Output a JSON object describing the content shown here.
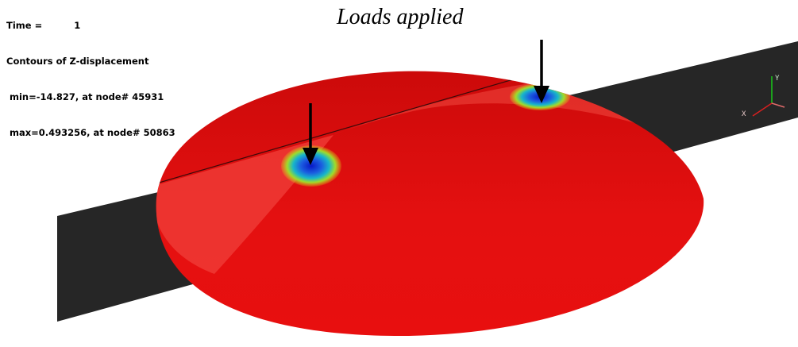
{
  "header": {
    "time_line": "Time =          1",
    "title": "Contours of Z-displacement",
    "min_line": " min=-14.827, at node# 45931",
    "max_line": " max=0.493256, at node# 50863"
  },
  "caption": "Loads applied",
  "triad": {
    "y_label": "Y",
    "x_label": "X"
  },
  "colors": {
    "dome": "#e00b0b",
    "dome_light": "#ee3a35",
    "strip": "#262626",
    "contour_low": "#0a1ad8",
    "contour_mid": "#18b7c9",
    "contour_high": "#c9e21a"
  },
  "icons": [
    "load-arrow-icon",
    "axis-triad-icon"
  ]
}
